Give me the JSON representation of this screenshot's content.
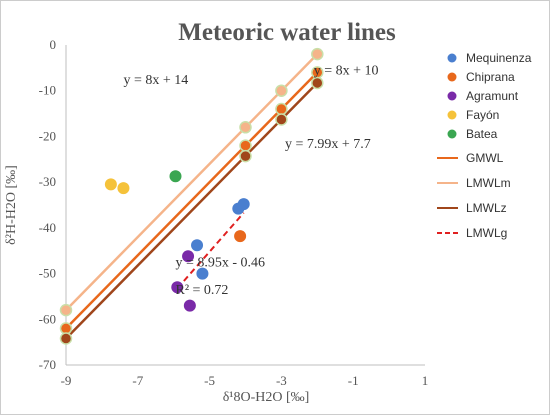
{
  "chart_data": {
    "type": "scatter",
    "title": "Meteoric water lines",
    "xlabel": "δ¹8O-H2O [‰]",
    "ylabel": "δ²H-H2O [‰]",
    "xlim": [
      -9,
      1
    ],
    "ylim": [
      -70,
      0
    ],
    "x_ticks": [
      -9,
      -7,
      -5,
      -3,
      -1,
      1
    ],
    "y_ticks": [
      0,
      -10,
      -20,
      -30,
      -40,
      -50,
      -60,
      -70
    ],
    "grid": false,
    "legend_position": "right",
    "series": [
      {
        "name": "Mequinenza",
        "kind": "points",
        "color": "#4a7fcf",
        "points": [
          [
            -5.35,
            -43.8
          ],
          [
            -5.2,
            -50.0
          ],
          [
            -4.2,
            -35.8
          ],
          [
            -4.05,
            -34.8
          ]
        ]
      },
      {
        "name": "Chiprana",
        "kind": "points",
        "color": "#e8681c",
        "points": [
          [
            -4.15,
            -41.8
          ]
        ]
      },
      {
        "name": "Agramunt",
        "kind": "points",
        "color": "#7a2aa8",
        "points": [
          [
            -5.6,
            -46.2
          ],
          [
            -5.55,
            -57.0
          ],
          [
            -5.9,
            -53.0
          ]
        ]
      },
      {
        "name": "Fayón",
        "kind": "points",
        "color": "#f5c23a",
        "points": [
          [
            -7.75,
            -30.5
          ],
          [
            -7.4,
            -31.3
          ]
        ]
      },
      {
        "name": "Batea",
        "kind": "points",
        "color": "#3aa651",
        "points": [
          [
            -5.95,
            -28.7
          ]
        ]
      }
    ],
    "lines": [
      {
        "name": "GMWL",
        "color": "#e8681c",
        "dash": false,
        "slope": 8,
        "intercept": 10,
        "x_range": [
          -9,
          -2
        ],
        "markers": [
          [
            -9,
            -62
          ],
          [
            -4,
            -22
          ],
          [
            -3,
            -14
          ],
          [
            -2,
            -6
          ]
        ]
      },
      {
        "name": "LMWLm",
        "color": "#f5b48a",
        "dash": false,
        "slope": 8,
        "intercept": 14,
        "x_range": [
          -9,
          -2
        ],
        "markers": [
          [
            -9,
            -58
          ],
          [
            -4,
            -18
          ],
          [
            -3,
            -10
          ],
          [
            -2,
            -2
          ]
        ]
      },
      {
        "name": "LMWLz",
        "color": "#a0461b",
        "dash": false,
        "slope": 7.99,
        "intercept": 7.7,
        "x_range": [
          -9,
          -2
        ],
        "markers": [
          [
            -9,
            -64.2
          ],
          [
            -4,
            -24.3
          ],
          [
            -3,
            -16.3
          ],
          [
            -2,
            -8.3
          ]
        ]
      },
      {
        "name": "LMWLg",
        "color": "#e02020",
        "dash": true,
        "slope": 8.95,
        "intercept": -0.46,
        "x_range": [
          -5.9,
          -4.05
        ],
        "markers": []
      }
    ],
    "annotations": [
      {
        "text": "y = 8x + 14",
        "x": -7.4,
        "y": -8.5
      },
      {
        "text": "y = 8x + 10",
        "x": -2.1,
        "y": -6.5
      },
      {
        "text": "y = 7.99x + 7.7",
        "x": -2.9,
        "y": -22.5
      },
      {
        "text": "y = 8.95x - 0.46",
        "x": -5.95,
        "y": -48.5
      },
      {
        "text": "R² = 0.72",
        "x": -5.95,
        "y": -54.5
      }
    ]
  }
}
